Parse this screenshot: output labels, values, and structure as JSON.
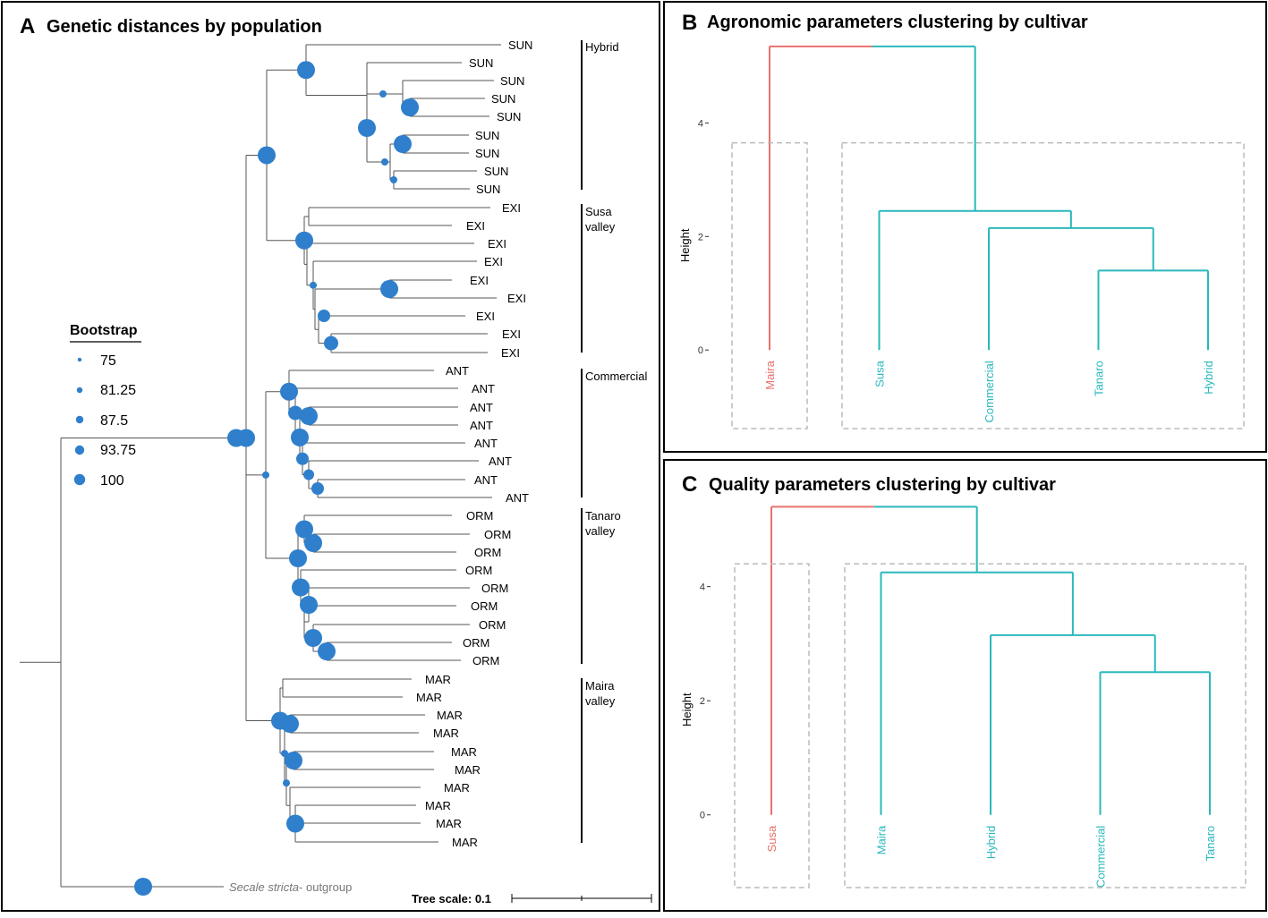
{
  "panel_a": {
    "letter": "A",
    "title": "Genetic distances by population",
    "legend_title": "Bootstrap",
    "legend_items": [
      "75",
      "81.25",
      "87.5",
      "93.75",
      "100"
    ],
    "scale_label": "Tree scale: 0.1",
    "outgroup_italic": "Secale stricta",
    "outgroup_rest": "- outgroup",
    "groups": [
      {
        "line1": "Hybrid",
        "line2": ""
      },
      {
        "line1": "Susa",
        "line2": "valley"
      },
      {
        "line1": "Commercial",
        "line2": ""
      },
      {
        "line1": "Tanaro",
        "line2": "valley"
      },
      {
        "line1": "Maira",
        "line2": "valley"
      }
    ],
    "leaves": [
      "SUN",
      "SUN",
      "SUN",
      "SUN",
      "SUN",
      "SUN",
      "SUN",
      "SUN",
      "SUN",
      "EXI",
      "EXI",
      "EXI",
      "EXI",
      "EXI",
      "EXI",
      "EXI",
      "EXI",
      "EXI",
      "ANT",
      "ANT",
      "ANT",
      "ANT",
      "ANT",
      "ANT",
      "ANT",
      "ANT",
      "ORM",
      "ORM",
      "ORM",
      "ORM",
      "ORM",
      "ORM",
      "ORM",
      "ORM",
      "ORM",
      "MAR",
      "MAR",
      "MAR",
      "MAR",
      "MAR",
      "MAR",
      "MAR",
      "MAR",
      "MAR",
      "MAR"
    ],
    "node_color": "#2f7fcc"
  },
  "chart_data": [
    {
      "type": "dendrogram",
      "letter": "B",
      "title": "Agronomic parameters clustering by cultivar",
      "ylabel": "Height",
      "yticks": [
        0,
        2,
        4
      ],
      "ylim": [
        -1.4,
        5.3
      ],
      "leaves": [
        "Maira",
        "Susa",
        "Commercial",
        "Tanaro",
        "Hybrid"
      ],
      "leaf_clusters": [
        1,
        2,
        2,
        2,
        2
      ],
      "merges": [
        {
          "left": "Tanaro",
          "right": "Hybrid",
          "height": 1.4
        },
        {
          "left": "Commercial",
          "right": "Tanaro+Hybrid",
          "height": 2.15
        },
        {
          "left": "Susa",
          "right": "Commercial+Tanaro+Hybrid",
          "height": 2.45
        },
        {
          "left": "Maira",
          "right": "Susa+Commercial+Tanaro+Hybrid",
          "height": 5.35
        }
      ],
      "colors": {
        "cluster1": "#e8716c",
        "cluster2": "#2ab8bd"
      }
    },
    {
      "type": "dendrogram",
      "letter": "C",
      "title": "Quality parameters clustering by cultivar",
      "ylabel": "Height",
      "yticks": [
        0,
        2,
        4
      ],
      "ylim": [
        -1.4,
        5.5
      ],
      "leaves": [
        "Susa",
        "Maira",
        "Hybrid",
        "Commercial",
        "Tanaro"
      ],
      "leaf_clusters": [
        1,
        2,
        2,
        2,
        2
      ],
      "merges": [
        {
          "left": "Commercial",
          "right": "Tanaro",
          "height": 2.5
        },
        {
          "left": "Hybrid",
          "right": "Commercial+Tanaro",
          "height": 3.15
        },
        {
          "left": "Maira",
          "right": "Hybrid+Commercial+Tanaro",
          "height": 4.25
        },
        {
          "left": "Susa",
          "right": "Maira+Hybrid+Commercial+Tanaro",
          "height": 5.4
        }
      ],
      "colors": {
        "cluster1": "#e8716c",
        "cluster2": "#2ab8bd"
      }
    }
  ]
}
